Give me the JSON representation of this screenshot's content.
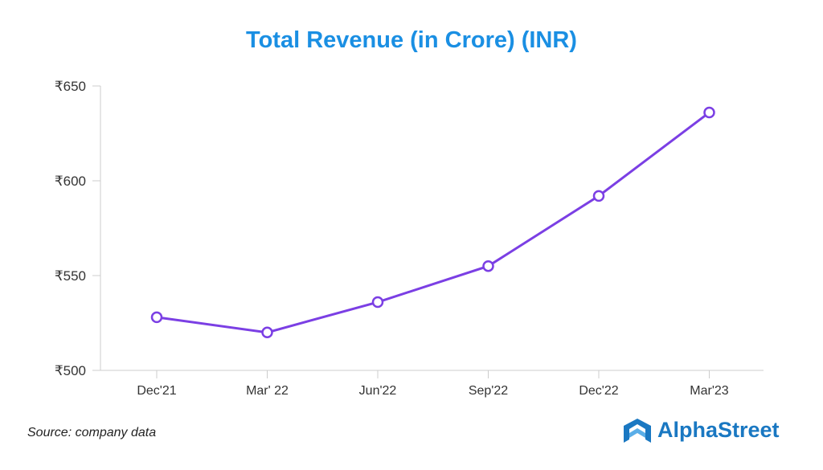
{
  "chart_data": {
    "type": "line",
    "title": "Total Revenue (in Crore) (INR)",
    "xlabel": "",
    "ylabel": "",
    "categories": [
      "Dec'21",
      "Mar' 22",
      "Jun'22",
      "Sep'22",
      "Dec'22",
      "Mar'23"
    ],
    "series": [
      {
        "name": "Total Revenue",
        "values": [
          528,
          520,
          536,
          555,
          592,
          636
        ],
        "color": "#7b3fe4"
      }
    ],
    "ylim": [
      500,
      650
    ],
    "yticks": [
      500,
      550,
      600,
      650
    ],
    "ytick_labels": [
      "₹500",
      "₹550",
      "₹600",
      "₹650"
    ],
    "grid": false,
    "legend": "none"
  },
  "footer": {
    "source": "Source: company data",
    "brand": "AlphaStreet"
  },
  "colors": {
    "title": "#1a8fe3",
    "line": "#7b3fe4",
    "brand": "#1a78c2"
  }
}
